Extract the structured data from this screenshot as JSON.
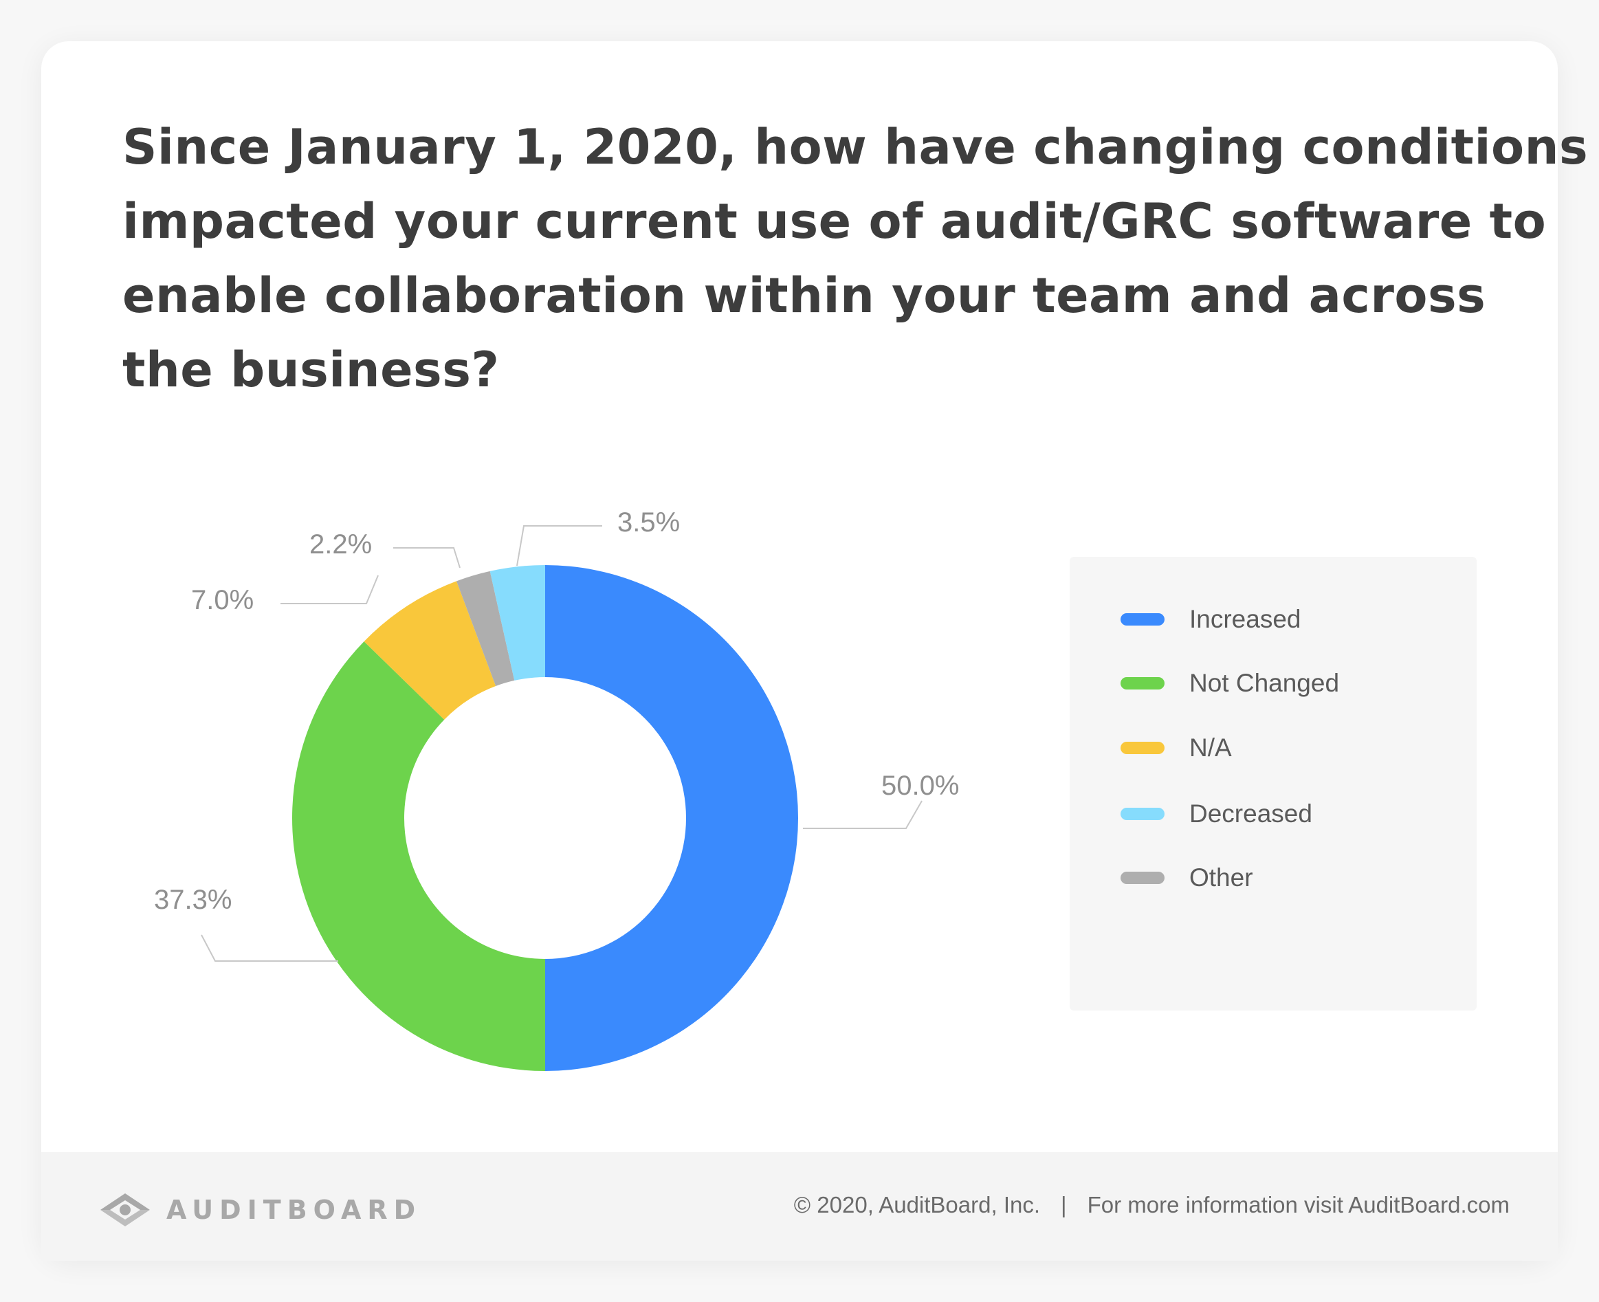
{
  "title_lines": [
    "Since January 1, 2020, how have changing conditions",
    "impacted your current use of audit/GRC software to",
    "enable collaboration within your team and across",
    "the business?"
  ],
  "chart_data": {
    "type": "pie",
    "variant": "donut",
    "title": "Since January 1, 2020, how have changing conditions impacted your current use of audit/GRC software to enable collaboration within your team and across the business?",
    "categories": [
      "Increased",
      "Not Changed",
      "N/A",
      "Other",
      "Decreased"
    ],
    "values": [
      50.0,
      37.3,
      7.0,
      2.2,
      3.5
    ],
    "data_labels": [
      "50.0%",
      "37.3%",
      "7.0%",
      "2.2%",
      "3.5%"
    ],
    "colors": [
      "#3a8afd",
      "#6dd34c",
      "#f9c73b",
      "#aeaeae",
      "#86dcfd"
    ],
    "legend_placement": "right"
  },
  "legend": {
    "items": [
      {
        "label": "Increased",
        "color": "#3a8afd"
      },
      {
        "label": "Not Changed",
        "color": "#6dd34c"
      },
      {
        "label": "N/A",
        "color": "#f9c73b"
      },
      {
        "label": "Decreased",
        "color": "#86dcfd"
      },
      {
        "label": "Other",
        "color": "#aeaeae"
      }
    ]
  },
  "footer": {
    "logo_text": "AUDITBOARD",
    "logo_icon": "auditboard-logo-icon",
    "copyright": "© 2020, AuditBoard, Inc.",
    "separator": "|",
    "info": "For more information visit AuditBoard.com"
  }
}
